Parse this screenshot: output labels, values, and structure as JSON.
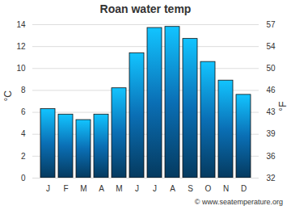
{
  "chart_data": {
    "type": "bar",
    "title": "Roan water temp",
    "categories": [
      "J",
      "F",
      "M",
      "A",
      "M",
      "J",
      "J",
      "A",
      "S",
      "O",
      "N",
      "D"
    ],
    "values": [
      6.3,
      5.8,
      5.3,
      5.8,
      8.2,
      11.4,
      13.7,
      13.8,
      12.7,
      10.6,
      8.9,
      7.6
    ],
    "color": "#0a6fb5",
    "y_label": "°C",
    "ylim": [
      0,
      14
    ],
    "yticks": [
      0,
      2,
      4,
      6,
      8,
      10,
      12,
      14
    ],
    "y2_label": "°F",
    "y2lim": [
      32,
      57.2
    ],
    "y2ticks": [
      32,
      {
        "value": 35.6,
        "label": "36"
      },
      {
        "value": 39.2,
        "label": "39"
      },
      {
        "value": 42.8,
        "label": "43"
      },
      {
        "value": 46.4,
        "label": "46"
      },
      50,
      {
        "value": 53.6,
        "label": "54"
      },
      {
        "value": 57.2,
        "label": "57"
      }
    ],
    "grid": true,
    "caption": "© www.seatemperature.org"
  }
}
